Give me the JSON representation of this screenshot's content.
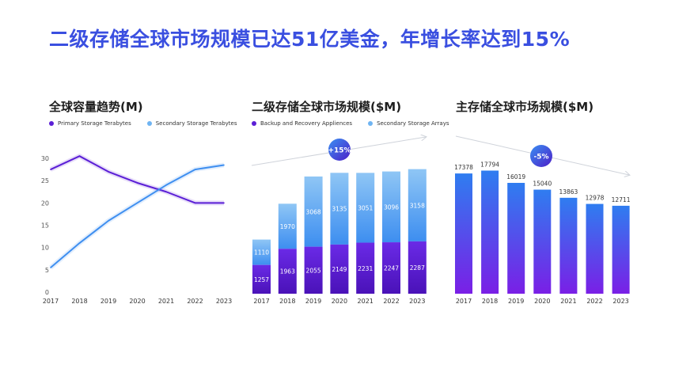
{
  "title": "二级存储全球市场规模已达51亿美金，年增长率达到15%",
  "colors": {
    "purple": "#5b1fd6",
    "blue": "#3f8ff0",
    "lightblue": "#6fb4f2",
    "title": "#3a4fe0"
  },
  "chart_data": [
    {
      "type": "line",
      "title": "全球容量趋势(M)",
      "x": [
        "2017",
        "2018",
        "2019",
        "2020",
        "2021",
        "2022",
        "2023"
      ],
      "ylim": [
        0,
        30
      ],
      "yticks": [
        0,
        5,
        10,
        15,
        20,
        25,
        30
      ],
      "legend_position": "top-left",
      "grid": false,
      "series": [
        {
          "name": "Primary Storage Terabytes",
          "color": "#5b1fd6",
          "values": [
            27.5,
            30.5,
            27,
            24.5,
            22.5,
            20,
            20
          ]
        },
        {
          "name": "Secondary Storage Terabytes",
          "color": "#3f8ff0",
          "values": [
            5.5,
            11,
            16,
            20,
            24,
            27.5,
            28.5
          ]
        }
      ]
    },
    {
      "type": "bar",
      "stacked": true,
      "title": "二级存储全球市场规模($M)",
      "categories": [
        "2017",
        "2018",
        "2019",
        "2020",
        "2021",
        "2022",
        "2023"
      ],
      "annotation": "+15%",
      "legend_position": "top-left",
      "series": [
        {
          "name": "Backup and Recovery Appliences",
          "color": "#5b1fd6",
          "values": [
            1257,
            1963,
            2055,
            2149,
            2231,
            2247,
            2287
          ]
        },
        {
          "name": "Secondary Storage Arrays",
          "color": "#6fb4f2",
          "values": [
            1110,
            1970,
            3068,
            3135,
            3051,
            3096,
            3158
          ]
        }
      ]
    },
    {
      "type": "bar",
      "title": "主存储全球市场规模($M)",
      "categories": [
        "2017",
        "2018",
        "2019",
        "2020",
        "2021",
        "2022",
        "2023"
      ],
      "annotation": "-5%",
      "series": [
        {
          "color": "#4a3cf0",
          "values": [
            17378,
            17794,
            16019,
            15040,
            13863,
            12978,
            12711
          ]
        }
      ]
    }
  ]
}
